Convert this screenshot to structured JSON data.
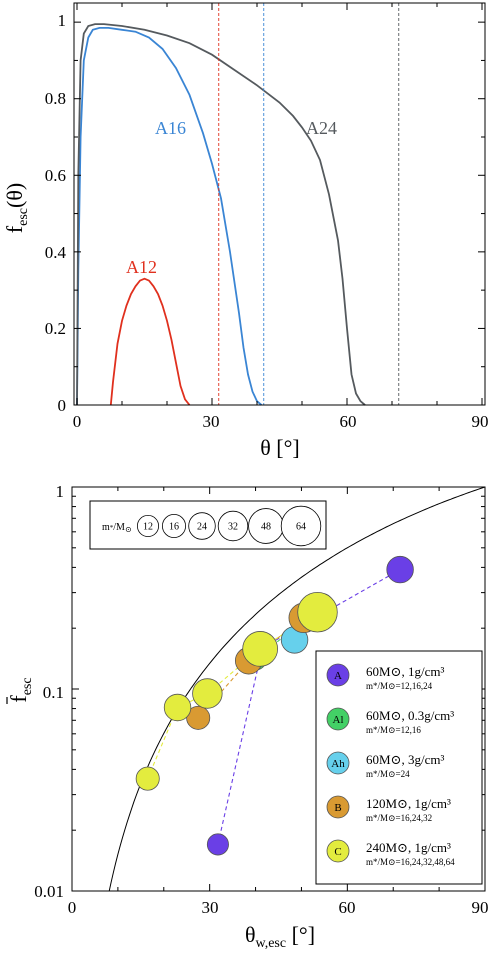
{
  "colors": {
    "A": "#6a3fe6",
    "Al": "#43d066",
    "Ah": "#66d0ec",
    "B": "#d99a32",
    "C": "#e3ec3e",
    "A12": "#e0301e",
    "A16": "#3a85d4",
    "A24": "#555a5e"
  },
  "chart_data": [
    {
      "type": "line",
      "xlabel": "θ [°]",
      "ylabel_main": "f",
      "ylabel_sub": "esc",
      "ylabel_tail": "(θ)",
      "xlim": [
        0,
        90
      ],
      "ylim": [
        0,
        1.05
      ],
      "xticks": [
        "0",
        "30",
        "60",
        "90"
      ],
      "yticks": [
        "0",
        "0.2",
        "0.4",
        "0.6",
        "0.8",
        "1"
      ],
      "vlines": [
        {
          "x": 31.5,
          "color": "#e0301e"
        },
        {
          "x": 41.5,
          "color": "#3a85d4"
        },
        {
          "x": 71.5,
          "color": "#555a5e"
        }
      ],
      "series": [
        {
          "name": "A12",
          "color": "#e0301e",
          "x": [
            7.5,
            8,
            9,
            10,
            11,
            12,
            13,
            14,
            15,
            16,
            17,
            18,
            19,
            20,
            21,
            22,
            23,
            24,
            25
          ],
          "y": [
            0,
            0.06,
            0.16,
            0.22,
            0.26,
            0.29,
            0.31,
            0.325,
            0.33,
            0.325,
            0.31,
            0.29,
            0.26,
            0.22,
            0.17,
            0.11,
            0.05,
            0.015,
            0
          ]
        },
        {
          "name": "A16",
          "color": "#3a85d4",
          "x": [
            0,
            0.3,
            0.8,
            1.5,
            2.5,
            3.5,
            5,
            7,
            10,
            13,
            16,
            19,
            22,
            25,
            28,
            30,
            32,
            34,
            35,
            36,
            37,
            38,
            39,
            40,
            41
          ],
          "y": [
            0,
            0.35,
            0.7,
            0.9,
            0.96,
            0.98,
            0.985,
            0.985,
            0.98,
            0.975,
            0.96,
            0.93,
            0.88,
            0.81,
            0.71,
            0.63,
            0.54,
            0.4,
            0.32,
            0.24,
            0.15,
            0.08,
            0.035,
            0.01,
            0
          ]
        },
        {
          "name": "A24",
          "color": "#555a5e",
          "x": [
            0,
            0.3,
            0.8,
            1.5,
            2.5,
            4,
            6,
            10,
            15,
            20,
            25,
            30,
            35,
            40,
            45,
            48,
            50,
            52,
            54,
            56,
            58,
            59,
            60,
            61,
            62,
            63,
            64
          ],
          "y": [
            0,
            0.6,
            0.9,
            0.97,
            0.99,
            0.995,
            0.995,
            0.99,
            0.98,
            0.965,
            0.945,
            0.915,
            0.875,
            0.835,
            0.79,
            0.755,
            0.725,
            0.69,
            0.64,
            0.55,
            0.43,
            0.33,
            0.2,
            0.08,
            0.03,
            0.01,
            0
          ]
        }
      ]
    },
    {
      "type": "scatter",
      "xlabel_main": "θ",
      "xlabel_sub": "w,esc",
      "xlabel_tail": " [°]",
      "ylabel_main": "f",
      "ylabel_sub": "esc",
      "xlim": [
        0,
        90
      ],
      "ylim": [
        0.01,
        1
      ],
      "yscale": "log",
      "xticks": [
        "0",
        "30",
        "60",
        "90"
      ],
      "yticks": [
        "0.01",
        "0.1",
        "1"
      ],
      "reference_curve": "1 - cos(θ)",
      "size_legend": {
        "label_main": "m",
        "label_mid": "*",
        "label_tail": "/M",
        "label_sym": "⊙",
        "values": [
          "12",
          "16",
          "24",
          "32",
          "48",
          "64"
        ]
      },
      "series": [
        {
          "name": "A",
          "title": "60M⊙, 1g/cm³",
          "subtitle": "m*/M⊙=12,16,24",
          "color": "#6a3fe6",
          "x": [
            31.8,
            41.5,
            71.5
          ],
          "y": [
            0.017,
            0.16,
            0.39
          ],
          "m": [
            12,
            16,
            24
          ]
        },
        {
          "name": "Al",
          "title": "60M⊙, 0.3g/cm³",
          "subtitle": "m*/M⊙=12,16",
          "color": "#43d066",
          "x": [
            40,
            54.5
          ],
          "y": [
            0.14,
            0.26
          ],
          "m": [
            12,
            16
          ]
        },
        {
          "name": "Ah",
          "title": "60M⊙, 3g/cm³",
          "subtitle": "m*/M⊙=24",
          "color": "#66d0ec",
          "x": [
            48.5
          ],
          "y": [
            0.175
          ],
          "m": [
            24
          ]
        },
        {
          "name": "B",
          "title": "120M⊙, 1g/cm³",
          "subtitle": "m*/M⊙=16,24,32",
          "color": "#d99a32",
          "x": [
            27.5,
            38.5,
            50.5
          ],
          "y": [
            0.072,
            0.138,
            0.225
          ],
          "m": [
            16,
            24,
            32
          ]
        },
        {
          "name": "C",
          "title": "240M⊙, 1g/cm³",
          "subtitle": "m*/M⊙=16,24,32,48,64",
          "color": "#e3ec3e",
          "x": [
            16.5,
            23,
            29.5,
            41,
            53.5
          ],
          "y": [
            0.036,
            0.081,
            0.095,
            0.158,
            0.24
          ],
          "m": [
            16,
            24,
            32,
            48,
            64
          ]
        }
      ]
    }
  ]
}
